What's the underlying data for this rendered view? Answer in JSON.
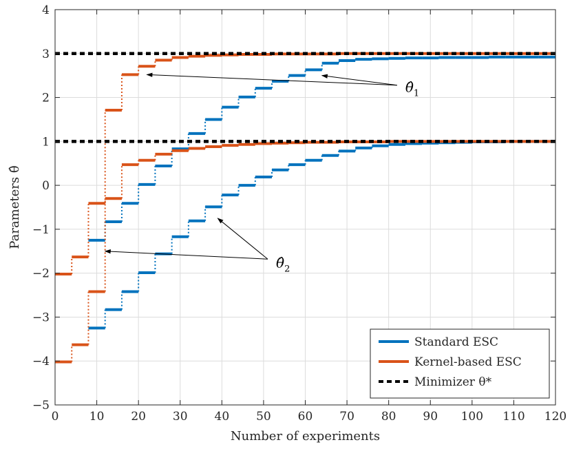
{
  "chart_data": {
    "type": "line",
    "xlabel": "Number of experiments",
    "ylabel": "Parameters θ̂",
    "xlim": [
      0,
      120
    ],
    "ylim": [
      -5,
      4
    ],
    "xticks": [
      0,
      10,
      20,
      30,
      40,
      50,
      60,
      70,
      80,
      90,
      100,
      110,
      120
    ],
    "yticks": [
      -5,
      -4,
      -3,
      -2,
      -1,
      0,
      1,
      2,
      3,
      4
    ],
    "grid": true,
    "legend_position": "bottom-right",
    "colors": {
      "standard": "#0072BD",
      "kernel": "#D95319",
      "minimizer": "#000000"
    },
    "step_width": 4,
    "series": [
      {
        "name": "Standard ESC",
        "component": "theta1",
        "style": "step",
        "x": [
          8,
          12,
          16,
          20,
          24,
          28,
          32,
          36,
          40,
          44,
          48,
          52,
          56,
          60,
          64,
          68,
          72,
          76,
          80,
          84,
          88,
          92,
          96,
          100,
          104,
          108,
          112,
          116,
          120
        ],
        "values": [
          -1.25,
          -0.83,
          -0.41,
          0.02,
          0.44,
          0.83,
          1.18,
          1.5,
          1.78,
          2.01,
          2.21,
          2.37,
          2.5,
          2.63,
          2.78,
          2.84,
          2.87,
          2.88,
          2.89,
          2.9,
          2.9,
          2.91,
          2.91,
          2.91,
          2.92,
          2.92,
          2.92,
          2.92,
          2.92
        ]
      },
      {
        "name": "Standard ESC",
        "component": "theta2",
        "style": "step",
        "x": [
          8,
          12,
          16,
          20,
          24,
          28,
          32,
          36,
          40,
          44,
          48,
          52,
          56,
          60,
          64,
          68,
          72,
          76,
          80,
          84,
          88,
          92,
          96,
          100,
          104,
          108,
          112,
          116,
          120
        ],
        "values": [
          -3.25,
          -2.83,
          -2.42,
          -1.99,
          -1.56,
          -1.17,
          -0.81,
          -0.49,
          -0.22,
          0.0,
          0.19,
          0.35,
          0.47,
          0.57,
          0.68,
          0.78,
          0.85,
          0.9,
          0.93,
          0.95,
          0.96,
          0.97,
          0.98,
          0.99,
          0.99,
          1.0,
          1.0,
          1.0,
          1.0
        ]
      },
      {
        "name": "Kernel-based ESC",
        "component": "theta1",
        "style": "step",
        "x": [
          0,
          4,
          8,
          12,
          16,
          20,
          24,
          28,
          32,
          36,
          40,
          44,
          48,
          52,
          56,
          60,
          64,
          68,
          72,
          76,
          80,
          84,
          88,
          92,
          96,
          100,
          104,
          108,
          112,
          116,
          120
        ],
        "values": [
          -2.02,
          -1.63,
          -0.41,
          1.71,
          2.52,
          2.71,
          2.85,
          2.91,
          2.94,
          2.96,
          2.97,
          2.98,
          2.98,
          2.99,
          2.99,
          2.99,
          2.99,
          3.0,
          3.0,
          3.0,
          3.0,
          3.0,
          3.0,
          3.0,
          3.0,
          3.0,
          3.0,
          3.0,
          3.0,
          3.0,
          3.0
        ]
      },
      {
        "name": "Kernel-based ESC",
        "component": "theta2",
        "style": "step",
        "x": [
          0,
          4,
          8,
          12,
          16,
          20,
          24,
          28,
          32,
          36,
          40,
          44,
          48,
          52,
          56,
          60,
          64,
          68,
          72,
          76,
          80,
          84,
          88,
          92,
          96,
          100,
          104,
          108,
          112,
          116,
          120
        ],
        "values": [
          -4.02,
          -3.63,
          -2.42,
          -0.3,
          0.47,
          0.57,
          0.71,
          0.79,
          0.84,
          0.88,
          0.91,
          0.93,
          0.95,
          0.96,
          0.97,
          0.98,
          0.98,
          0.99,
          0.99,
          0.99,
          1.0,
          1.0,
          1.0,
          1.0,
          1.0,
          1.0,
          1.0,
          1.0,
          1.0,
          1.0,
          1.0
        ]
      },
      {
        "name": "Minimizer θ*",
        "component": "theta1",
        "style": "dashed",
        "value": 3
      },
      {
        "name": "Minimizer θ*",
        "component": "theta2",
        "style": "dashed",
        "value": 1
      }
    ],
    "legend": [
      {
        "label": "Standard ESC",
        "color": "#0072BD",
        "style": "solid"
      },
      {
        "label": "Kernel-based ESC",
        "color": "#D95319",
        "style": "solid"
      },
      {
        "label": "Minimizer θ*",
        "color": "#000000",
        "style": "dashed"
      }
    ],
    "annotations": [
      {
        "label": "θ̂",
        "subscript": "1",
        "arrow_targets": [
          [
            22,
            2.52
          ],
          [
            64,
            2.5
          ]
        ]
      },
      {
        "label": "θ̂",
        "subscript": "2",
        "arrow_targets": [
          [
            12,
            -1.5
          ],
          [
            39,
            -0.75
          ]
        ]
      }
    ]
  }
}
